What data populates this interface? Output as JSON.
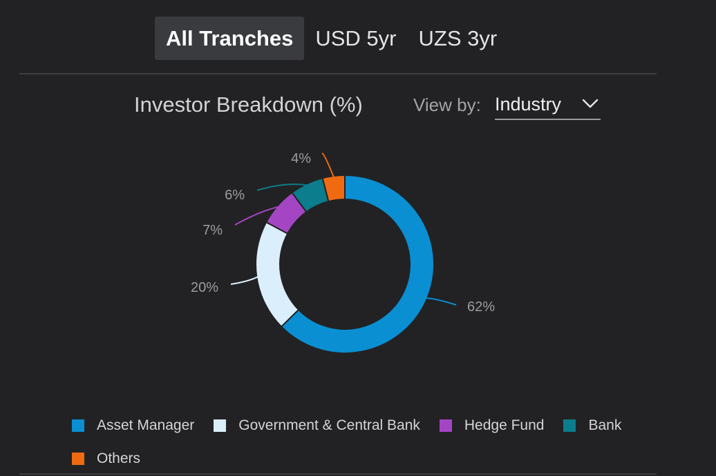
{
  "tabs": [
    {
      "label": "All Tranches",
      "active": true
    },
    {
      "label": "USD 5yr",
      "active": false
    },
    {
      "label": "UZS 3yr",
      "active": false
    }
  ],
  "view_by": {
    "label": "View by:",
    "value": "Industry"
  },
  "icons": {
    "dropdown": "chevron-down-icon"
  },
  "chart_data": {
    "type": "pie",
    "variant": "donut",
    "title": "Investor Breakdown (%)",
    "categories": [
      "Asset Manager",
      "Government & Central Bank",
      "Hedge Fund",
      "Bank",
      "Others"
    ],
    "values": [
      62,
      20,
      7,
      6,
      4
    ],
    "labels": [
      "62%",
      "20%",
      "7%",
      "6%",
      "4%"
    ],
    "colors": [
      "#0a8fd2",
      "#dbeefb",
      "#a446c4",
      "#0b7d8c",
      "#f06a12"
    ],
    "legend_position": "bottom-left"
  }
}
